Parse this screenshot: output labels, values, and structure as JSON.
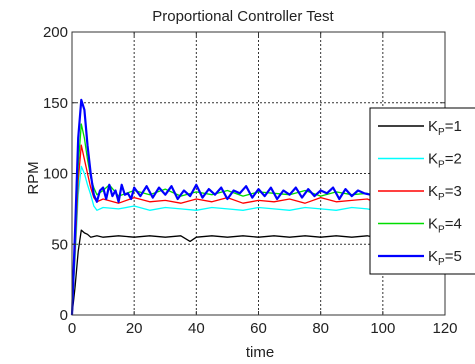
{
  "chart_data": {
    "type": "line",
    "title": "Proportional Controller Test",
    "xlabel": "time",
    "ylabel": "RPM",
    "xlim": [
      0,
      120
    ],
    "ylim": [
      0,
      200
    ],
    "xticks": [
      "0",
      "20",
      "40",
      "60",
      "80",
      "100",
      "120"
    ],
    "yticks": [
      "0",
      "50",
      "100",
      "150",
      "200"
    ],
    "grid": true,
    "legend_position": "center-right",
    "series": [
      {
        "name": "K_P=1",
        "label_main": "K",
        "label_sub": "P",
        "label_suffix": "=1",
        "color": "#000000",
        "x": [
          0,
          1,
          2,
          3,
          4,
          5,
          6,
          8,
          10,
          15,
          20,
          25,
          30,
          35,
          38,
          40,
          45,
          50,
          55,
          60,
          65,
          70,
          75,
          80,
          85,
          90,
          95,
          97
        ],
        "y": [
          0,
          20,
          45,
          60,
          58,
          57,
          55,
          56,
          55,
          56,
          55,
          56,
          55,
          56,
          52,
          55,
          56,
          55,
          56,
          55,
          56,
          55,
          56,
          55,
          56,
          55,
          56,
          55
        ]
      },
      {
        "name": "K_P=2",
        "label_main": "K",
        "label_sub": "P",
        "label_suffix": "=2",
        "color": "#00ffff",
        "x": [
          0,
          1,
          2,
          3,
          4,
          5,
          6,
          7,
          8,
          10,
          15,
          20,
          25,
          30,
          35,
          40,
          45,
          50,
          55,
          60,
          65,
          70,
          75,
          80,
          85,
          90,
          95,
          97
        ],
        "y": [
          0,
          40,
          85,
          105,
          100,
          92,
          85,
          77,
          74,
          76,
          75,
          77,
          74,
          76,
          75,
          74,
          76,
          75,
          74,
          76,
          75,
          74,
          76,
          75,
          74,
          76,
          75,
          74
        ]
      },
      {
        "name": "K_P=3",
        "label_main": "K",
        "label_sub": "P",
        "label_suffix": "=3",
        "color": "#ff0000",
        "x": [
          0,
          1,
          2,
          3,
          4,
          5,
          6,
          7,
          8,
          10,
          15,
          20,
          25,
          30,
          35,
          40,
          45,
          50,
          55,
          60,
          65,
          70,
          75,
          80,
          85,
          90,
          95,
          97
        ],
        "y": [
          0,
          45,
          95,
          120,
          110,
          100,
          90,
          83,
          80,
          82,
          79,
          83,
          80,
          81,
          79,
          82,
          80,
          83,
          79,
          81,
          80,
          82,
          79,
          83,
          80,
          81,
          82,
          80
        ]
      },
      {
        "name": "K_P=4",
        "label_main": "K",
        "label_sub": "P",
        "label_suffix": "=4",
        "color": "#00dd00",
        "x": [
          0,
          1,
          2,
          3,
          4,
          5,
          6,
          7,
          8,
          10,
          12,
          15,
          20,
          25,
          30,
          35,
          40,
          45,
          50,
          55,
          60,
          65,
          70,
          75,
          80,
          85,
          90,
          95,
          97
        ],
        "y": [
          0,
          50,
          105,
          135,
          125,
          110,
          97,
          90,
          85,
          88,
          92,
          84,
          88,
          85,
          89,
          84,
          87,
          85,
          88,
          84,
          87,
          86,
          85,
          88,
          84,
          87,
          85,
          86,
          84
        ]
      },
      {
        "name": "K_P=5",
        "label_main": "K",
        "label_sub": "P",
        "label_suffix": "=5",
        "color": "#0000ff",
        "x": [
          0,
          1,
          2,
          3,
          4,
          5,
          6,
          7,
          8,
          9,
          10,
          11,
          12,
          13,
          14,
          15,
          16,
          17,
          18,
          19,
          20,
          22,
          24,
          26,
          28,
          30,
          32,
          34,
          36,
          38,
          40,
          42,
          44,
          46,
          48,
          50,
          52,
          54,
          56,
          58,
          60,
          62,
          64,
          66,
          68,
          70,
          72,
          74,
          76,
          78,
          80,
          82,
          84,
          86,
          88,
          90,
          92,
          94,
          96,
          97
        ],
        "y": [
          0,
          60,
          125,
          152,
          145,
          120,
          100,
          85,
          80,
          88,
          90,
          82,
          92,
          84,
          88,
          80,
          92,
          85,
          86,
          82,
          90,
          84,
          91,
          83,
          90,
          85,
          91,
          82,
          88,
          84,
          92,
          83,
          89,
          85,
          90,
          82,
          88,
          86,
          91,
          83,
          89,
          84,
          90,
          82,
          88,
          85,
          90,
          83,
          89,
          84,
          88,
          86,
          90,
          82,
          89,
          84,
          88,
          86,
          85,
          88
        ]
      }
    ]
  }
}
